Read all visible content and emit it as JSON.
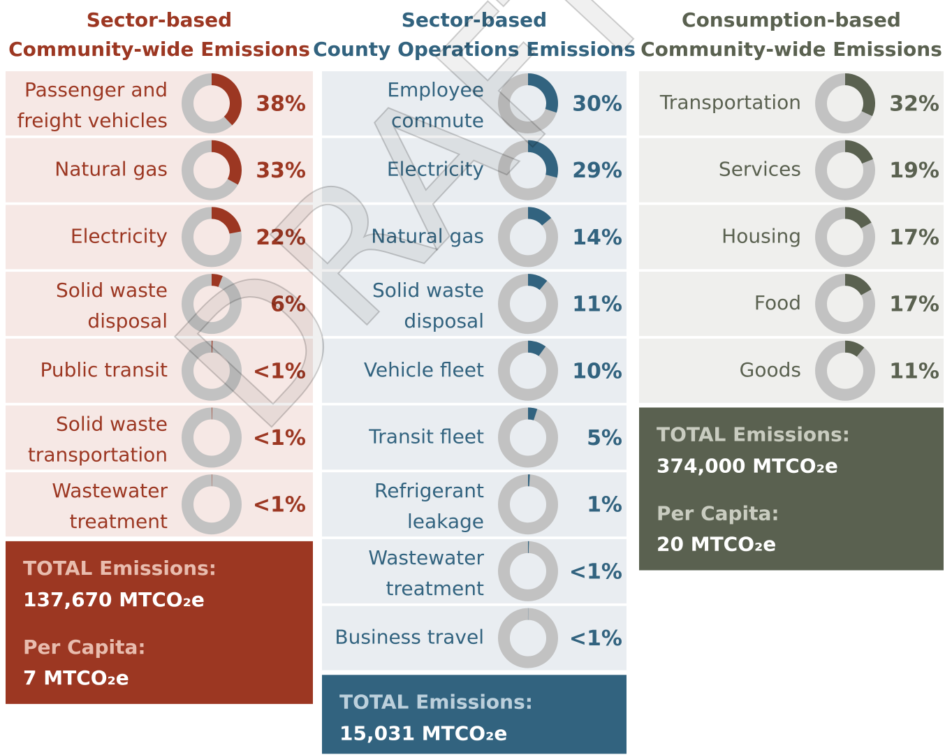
{
  "watermark": "DRAFT",
  "columns": [
    {
      "title": [
        "Sector-based",
        "Community-wide Emissions"
      ],
      "color": "#9c3722",
      "row_color": "#f6e8e5",
      "total_label_color": "#e8bcae",
      "rows": [
        {
          "label": [
            "Passenger and",
            "freight vehicles"
          ],
          "value": 38,
          "value_label": "38%"
        },
        {
          "label": [
            "Natural gas"
          ],
          "value": 33,
          "value_label": "33%"
        },
        {
          "label": [
            "Electricity"
          ],
          "value": 22,
          "value_label": "22%"
        },
        {
          "label": [
            "Solid waste",
            "disposal"
          ],
          "value": 6,
          "value_label": "6%"
        },
        {
          "label": [
            "Public transit"
          ],
          "value": 0.5,
          "value_label": "<1%"
        },
        {
          "label": [
            "Solid waste",
            "transportation"
          ],
          "value": 0.3,
          "value_label": "<1%"
        },
        {
          "label": [
            "Wastewater",
            "treatment"
          ],
          "value": 0.2,
          "value_label": "<1%"
        }
      ],
      "total": {
        "label": "TOTAL Emissions:",
        "value": "137,670 MTCO₂e"
      },
      "per_capita": {
        "label": "Per Capita:",
        "value": "7 MTCO₂e"
      }
    },
    {
      "title": [
        "Sector-based",
        "County Operations Emissions"
      ],
      "color": "#32637f",
      "row_color": "#e9edf1",
      "total_label_color": "#bcd0dc",
      "rows": [
        {
          "label": [
            "Employee",
            "commute"
          ],
          "value": 30,
          "value_label": "30%"
        },
        {
          "label": [
            "Electricity"
          ],
          "value": 29,
          "value_label": "29%"
        },
        {
          "label": [
            "Natural gas"
          ],
          "value": 14,
          "value_label": "14%"
        },
        {
          "label": [
            "Solid waste",
            "disposal"
          ],
          "value": 11,
          "value_label": "11%"
        },
        {
          "label": [
            "Vehicle fleet"
          ],
          "value": 10,
          "value_label": "10%"
        },
        {
          "label": [
            "Transit fleet"
          ],
          "value": 5,
          "value_label": "5%"
        },
        {
          "label": [
            "Refrigerant",
            "leakage"
          ],
          "value": 1,
          "value_label": "1%"
        },
        {
          "label": [
            "Wastewater",
            "treatment"
          ],
          "value": 0.5,
          "value_label": "<1%"
        },
        {
          "label": [
            "Business travel"
          ],
          "value": 0.1,
          "value_label": "<1%"
        }
      ],
      "total": {
        "label": "TOTAL Emissions:",
        "value": "15,031 MTCO₂e"
      }
    },
    {
      "title": [
        "Consumption-based",
        "Community-wide Emissions"
      ],
      "color": "#5a6150",
      "row_color": "#efefed",
      "total_label_color": "#c9ccc0",
      "rows": [
        {
          "label": [
            "Transportation"
          ],
          "value": 32,
          "value_label": "32%"
        },
        {
          "label": [
            "Services"
          ],
          "value": 19,
          "value_label": "19%"
        },
        {
          "label": [
            "Housing"
          ],
          "value": 17,
          "value_label": "17%"
        },
        {
          "label": [
            "Food"
          ],
          "value": 17,
          "value_label": "17%"
        },
        {
          "label": [
            "Goods"
          ],
          "value": 11,
          "value_label": "11%"
        }
      ],
      "total": {
        "label": "TOTAL Emissions:",
        "value": "374,000 MTCO₂e"
      },
      "per_capita": {
        "label": "Per Capita:",
        "value": "20 MTCO₂e"
      }
    }
  ]
}
